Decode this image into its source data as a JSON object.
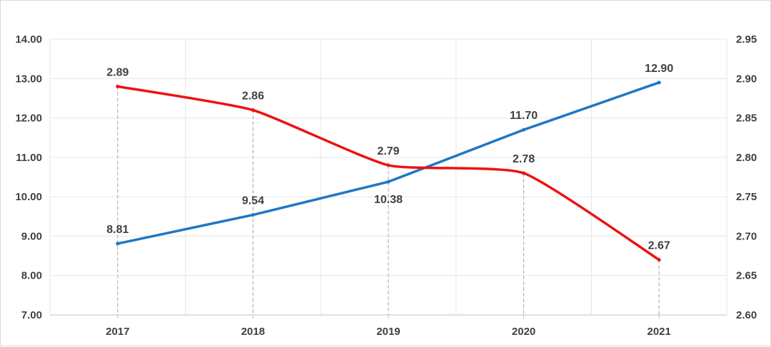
{
  "chart_data": {
    "type": "line",
    "categories": [
      "2017",
      "2018",
      "2019",
      "2020",
      "2021"
    ],
    "y_left": {
      "min": 7.0,
      "max": 14.0,
      "step": 1.0,
      "decimals": 2
    },
    "y_right": {
      "min": 2.6,
      "max": 2.95,
      "step": 0.05,
      "decimals": 2
    },
    "grid": true,
    "series": [
      {
        "axis": "left",
        "color": "#1f77c4",
        "smooth": false,
        "values": [
          8.81,
          9.54,
          10.38,
          11.7,
          12.9
        ],
        "labels": [
          "8.81",
          "9.54",
          "10.38",
          "11.70",
          "12.90"
        ],
        "label_pos": [
          "above",
          "above",
          "below",
          "above",
          "above"
        ]
      },
      {
        "axis": "right",
        "color": "#ee1111",
        "smooth": true,
        "values": [
          2.89,
          2.86,
          2.79,
          2.78,
          2.67
        ],
        "labels": [
          "2.89",
          "2.86",
          "2.79",
          "2.78",
          "2.67"
        ],
        "label_pos": [
          "above",
          "above",
          "above",
          "above",
          "above"
        ]
      }
    ]
  }
}
